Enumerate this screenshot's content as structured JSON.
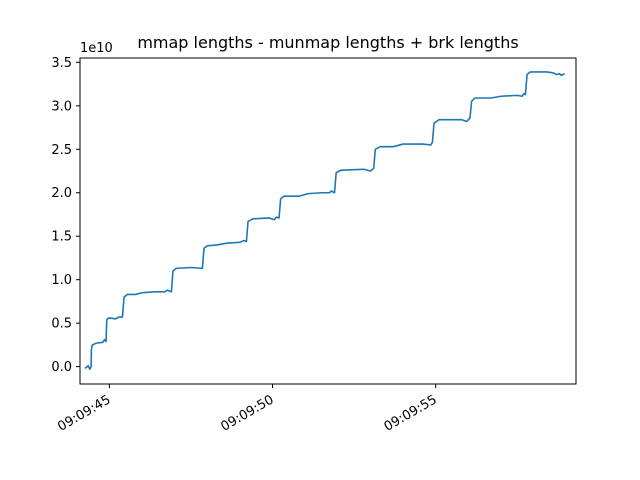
{
  "chart_data": {
    "type": "line",
    "title": "mmap lengths - munmap lengths + brk lengths",
    "xlabel": "",
    "ylabel": "",
    "y_offset_text": "1e10",
    "x_axis": {
      "type": "time",
      "min": "09:09:44.1",
      "max": "09:09:59.3",
      "ticks": [
        "09:09:45",
        "09:09:50",
        "09:09:55"
      ],
      "tick_label_rotation": 30
    },
    "y_axis": {
      "min": -0.2,
      "max": 3.55,
      "ticks": [
        "0.0",
        "0.5",
        "1.0",
        "1.5",
        "2.0",
        "2.5",
        "3.0",
        "3.5"
      ],
      "scale_factor": 10000000000.0
    },
    "grid": false,
    "legend": "none",
    "series": [
      {
        "color": "#1f77b4",
        "points": [
          [
            "09:09:44.25",
            -0.02
          ],
          [
            "09:09:44.35",
            0.01
          ],
          [
            "09:09:44.40",
            -0.03
          ],
          [
            "09:09:44.44",
            0.0
          ],
          [
            "09:09:44.45",
            0.2
          ],
          [
            "09:09:44.48",
            0.25
          ],
          [
            "09:09:44.60",
            0.27
          ],
          [
            "09:09:44.80",
            0.28
          ],
          [
            "09:09:44.85",
            0.31
          ],
          [
            "09:09:44.90",
            0.29
          ],
          [
            "09:09:44.92",
            0.54
          ],
          [
            "09:09:44.98",
            0.56
          ],
          [
            "09:09:45.20",
            0.55
          ],
          [
            "09:09:45.28",
            0.57
          ],
          [
            "09:09:45.40",
            0.57
          ],
          [
            "09:09:45.45",
            0.8
          ],
          [
            "09:09:45.55",
            0.83
          ],
          [
            "09:09:45.80",
            0.83
          ],
          [
            "09:09:46.00",
            0.85
          ],
          [
            "09:09:46.40",
            0.86
          ],
          [
            "09:09:46.70",
            0.86
          ],
          [
            "09:09:46.78",
            0.88
          ],
          [
            "09:09:46.90",
            0.86
          ],
          [
            "09:09:46.95",
            1.1
          ],
          [
            "09:09:47.05",
            1.13
          ],
          [
            "09:09:47.50",
            1.14
          ],
          [
            "09:09:47.85",
            1.13
          ],
          [
            "09:09:47.90",
            1.36
          ],
          [
            "09:09:48.00",
            1.39
          ],
          [
            "09:09:48.30",
            1.4
          ],
          [
            "09:09:48.60",
            1.42
          ],
          [
            "09:09:49.00",
            1.43
          ],
          [
            "09:09:49.12",
            1.45
          ],
          [
            "09:09:49.20",
            1.44
          ],
          [
            "09:09:49.25",
            1.67
          ],
          [
            "09:09:49.40",
            1.7
          ],
          [
            "09:09:49.90",
            1.71
          ],
          [
            "09:09:50.05",
            1.69
          ],
          [
            "09:09:50.12",
            1.72
          ],
          [
            "09:09:50.20",
            1.71
          ],
          [
            "09:09:50.25",
            1.93
          ],
          [
            "09:09:50.35",
            1.96
          ],
          [
            "09:09:50.80",
            1.96
          ],
          [
            "09:09:51.10",
            1.99
          ],
          [
            "09:09:51.50",
            2.0
          ],
          [
            "09:09:51.75",
            2.0
          ],
          [
            "09:09:51.80",
            2.02
          ],
          [
            "09:09:51.90",
            2.0
          ],
          [
            "09:09:51.95",
            2.23
          ],
          [
            "09:09:52.10",
            2.26
          ],
          [
            "09:09:52.80",
            2.27
          ],
          [
            "09:09:53.00",
            2.25
          ],
          [
            "09:09:53.10",
            2.28
          ],
          [
            "09:09:53.15",
            2.5
          ],
          [
            "09:09:53.30",
            2.53
          ],
          [
            "09:09:53.70",
            2.53
          ],
          [
            "09:09:54.00",
            2.56
          ],
          [
            "09:09:54.60",
            2.56
          ],
          [
            "09:09:54.85",
            2.55
          ],
          [
            "09:09:54.90",
            2.58
          ],
          [
            "09:09:54.95",
            2.8
          ],
          [
            "09:09:55.10",
            2.84
          ],
          [
            "09:09:55.80",
            2.84
          ],
          [
            "09:09:55.95",
            2.82
          ],
          [
            "09:09:56.05",
            2.86
          ],
          [
            "09:09:56.10",
            3.05
          ],
          [
            "09:09:56.20",
            3.09
          ],
          [
            "09:09:56.70",
            3.09
          ],
          [
            "09:09:57.00",
            3.11
          ],
          [
            "09:09:57.50",
            3.12
          ],
          [
            "09:09:57.65",
            3.11
          ],
          [
            "09:09:57.70",
            3.14
          ],
          [
            "09:09:57.75",
            3.13
          ],
          [
            "09:09:57.80",
            3.36
          ],
          [
            "09:09:57.90",
            3.39
          ],
          [
            "09:09:58.40",
            3.39
          ],
          [
            "09:09:58.60",
            3.38
          ],
          [
            "09:09:58.70",
            3.36
          ],
          [
            "09:09:58.80",
            3.37
          ],
          [
            "09:09:58.85",
            3.35
          ],
          [
            "09:09:58.95",
            3.37
          ]
        ]
      }
    ]
  }
}
